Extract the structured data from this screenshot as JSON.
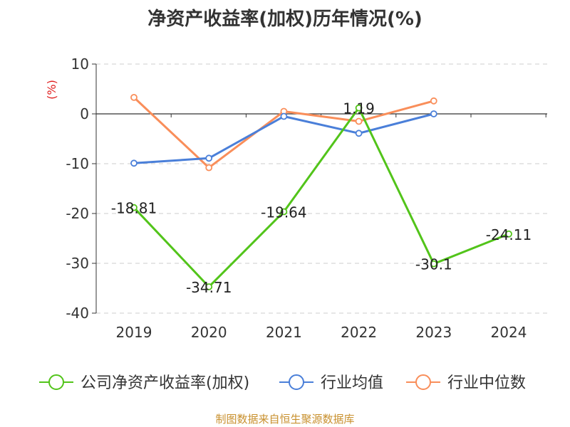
{
  "chart_data": {
    "type": "line",
    "title": "净资产收益率(加权)历年情况(%)",
    "ylabel": "(%)",
    "categories": [
      "2019",
      "2020",
      "2021",
      "2022",
      "2023",
      "2024"
    ],
    "ylim": [
      -40,
      10
    ],
    "yticks": [
      10,
      0,
      -10,
      -20,
      -30,
      -40
    ],
    "grid": true,
    "legend_position": "bottom",
    "series": [
      {
        "name": "公司净资产收益率(加权)",
        "color": "#52c41a",
        "values": [
          -18.81,
          -34.71,
          -19.64,
          1.19,
          -30.1,
          -24.11
        ],
        "labels": [
          "-18.81",
          "-34.71",
          "-19.64",
          "1.19",
          "-30.1",
          "-24.11"
        ]
      },
      {
        "name": "行业均值",
        "color": "#4a7fd9",
        "values": [
          -9.9,
          -8.9,
          -0.5,
          -3.9,
          0.0,
          null
        ]
      },
      {
        "name": "行业中位数",
        "color": "#f98e5a",
        "values": [
          3.3,
          -10.8,
          0.5,
          -1.5,
          2.6,
          null
        ]
      }
    ]
  },
  "source": "制图数据来自恒生聚源数据库"
}
